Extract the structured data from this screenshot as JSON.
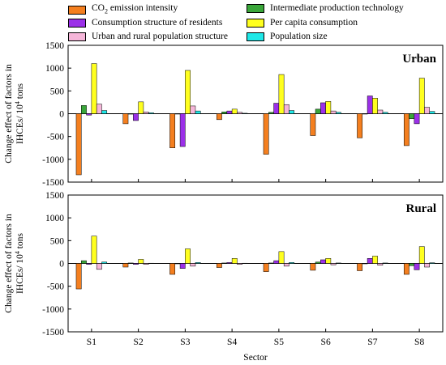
{
  "legend": [
    {
      "label_main": "CO",
      "label_sub": "2",
      "label_rest": " emission intensity",
      "color": "#f47f1f"
    },
    {
      "label_main": "Intermediate production technology",
      "color": "#3aa63a"
    },
    {
      "label_main": "Consumption structure of residents",
      "color": "#9b30e8"
    },
    {
      "label_main": "Per capita consumption",
      "color": "#ffff1f"
    },
    {
      "label_main": "Urban and rural population structure",
      "color": "#f5b6d9"
    },
    {
      "label_main": "Population size",
      "color": "#1fe8e8"
    }
  ],
  "chart_data": [
    {
      "type": "bar",
      "panel_title": "Urban",
      "ylabel_line1": "Change effect of  factors in",
      "ylabel_line2_main": "IHCEs/ 10",
      "ylabel_line2_sup": "4",
      "ylabel_line2_rest": " tons",
      "ylim": [
        -1500,
        1500
      ],
      "yticks": [
        -1500,
        -1000,
        -500,
        0,
        500,
        1000,
        1500
      ],
      "categories": [
        "S1",
        "S2",
        "S3",
        "S4",
        "S5",
        "S6",
        "S7",
        "S8"
      ],
      "series": [
        {
          "name": "CO2 emission intensity",
          "values": [
            -1340,
            -220,
            -750,
            -130,
            -890,
            -480,
            -530,
            -700
          ]
        },
        {
          "name": "Intermediate production technology",
          "values": [
            180,
            -10,
            0,
            40,
            30,
            100,
            0,
            -110
          ]
        },
        {
          "name": "Consumption structure of residents",
          "values": [
            -30,
            -150,
            -720,
            60,
            230,
            240,
            390,
            -220
          ]
        },
        {
          "name": "Per capita consumption",
          "values": [
            1100,
            260,
            950,
            100,
            860,
            270,
            340,
            780
          ]
        },
        {
          "name": "Urban and rural population structure",
          "values": [
            210,
            40,
            170,
            30,
            200,
            60,
            80,
            140
          ]
        },
        {
          "name": "Population size",
          "values": [
            70,
            20,
            60,
            10,
            70,
            30,
            30,
            50
          ]
        }
      ]
    },
    {
      "type": "bar",
      "panel_title": "Rural",
      "ylabel_line1": "Change effect of  factors in",
      "ylabel_line2_main": "IHCEs/ 10",
      "ylabel_line2_sup": "4",
      "ylabel_line2_rest": " tons",
      "ylim": [
        -1500,
        1500
      ],
      "yticks": [
        -1500,
        -1000,
        -500,
        0,
        500,
        1000,
        1500
      ],
      "xlabel": "Sector",
      "categories": [
        "S1",
        "S2",
        "S3",
        "S4",
        "S5",
        "S6",
        "S7",
        "S8"
      ],
      "series": [
        {
          "name": "CO2 emission intensity",
          "values": [
            -560,
            -80,
            -240,
            -90,
            -180,
            -150,
            -160,
            -240
          ]
        },
        {
          "name": "Intermediate production technology",
          "values": [
            60,
            10,
            0,
            10,
            10,
            30,
            0,
            -50
          ]
        },
        {
          "name": "Consumption structure of residents",
          "values": [
            -20,
            -20,
            -110,
            20,
            60,
            80,
            110,
            -140
          ]
        },
        {
          "name": "Per capita consumption",
          "values": [
            600,
            90,
            320,
            110,
            260,
            110,
            160,
            370
          ]
        },
        {
          "name": "Urban and rural population structure",
          "values": [
            -130,
            -20,
            -60,
            -20,
            -60,
            -30,
            -40,
            -80
          ]
        },
        {
          "name": "Population size",
          "values": [
            30,
            5,
            20,
            5,
            20,
            10,
            10,
            15
          ]
        }
      ]
    }
  ]
}
